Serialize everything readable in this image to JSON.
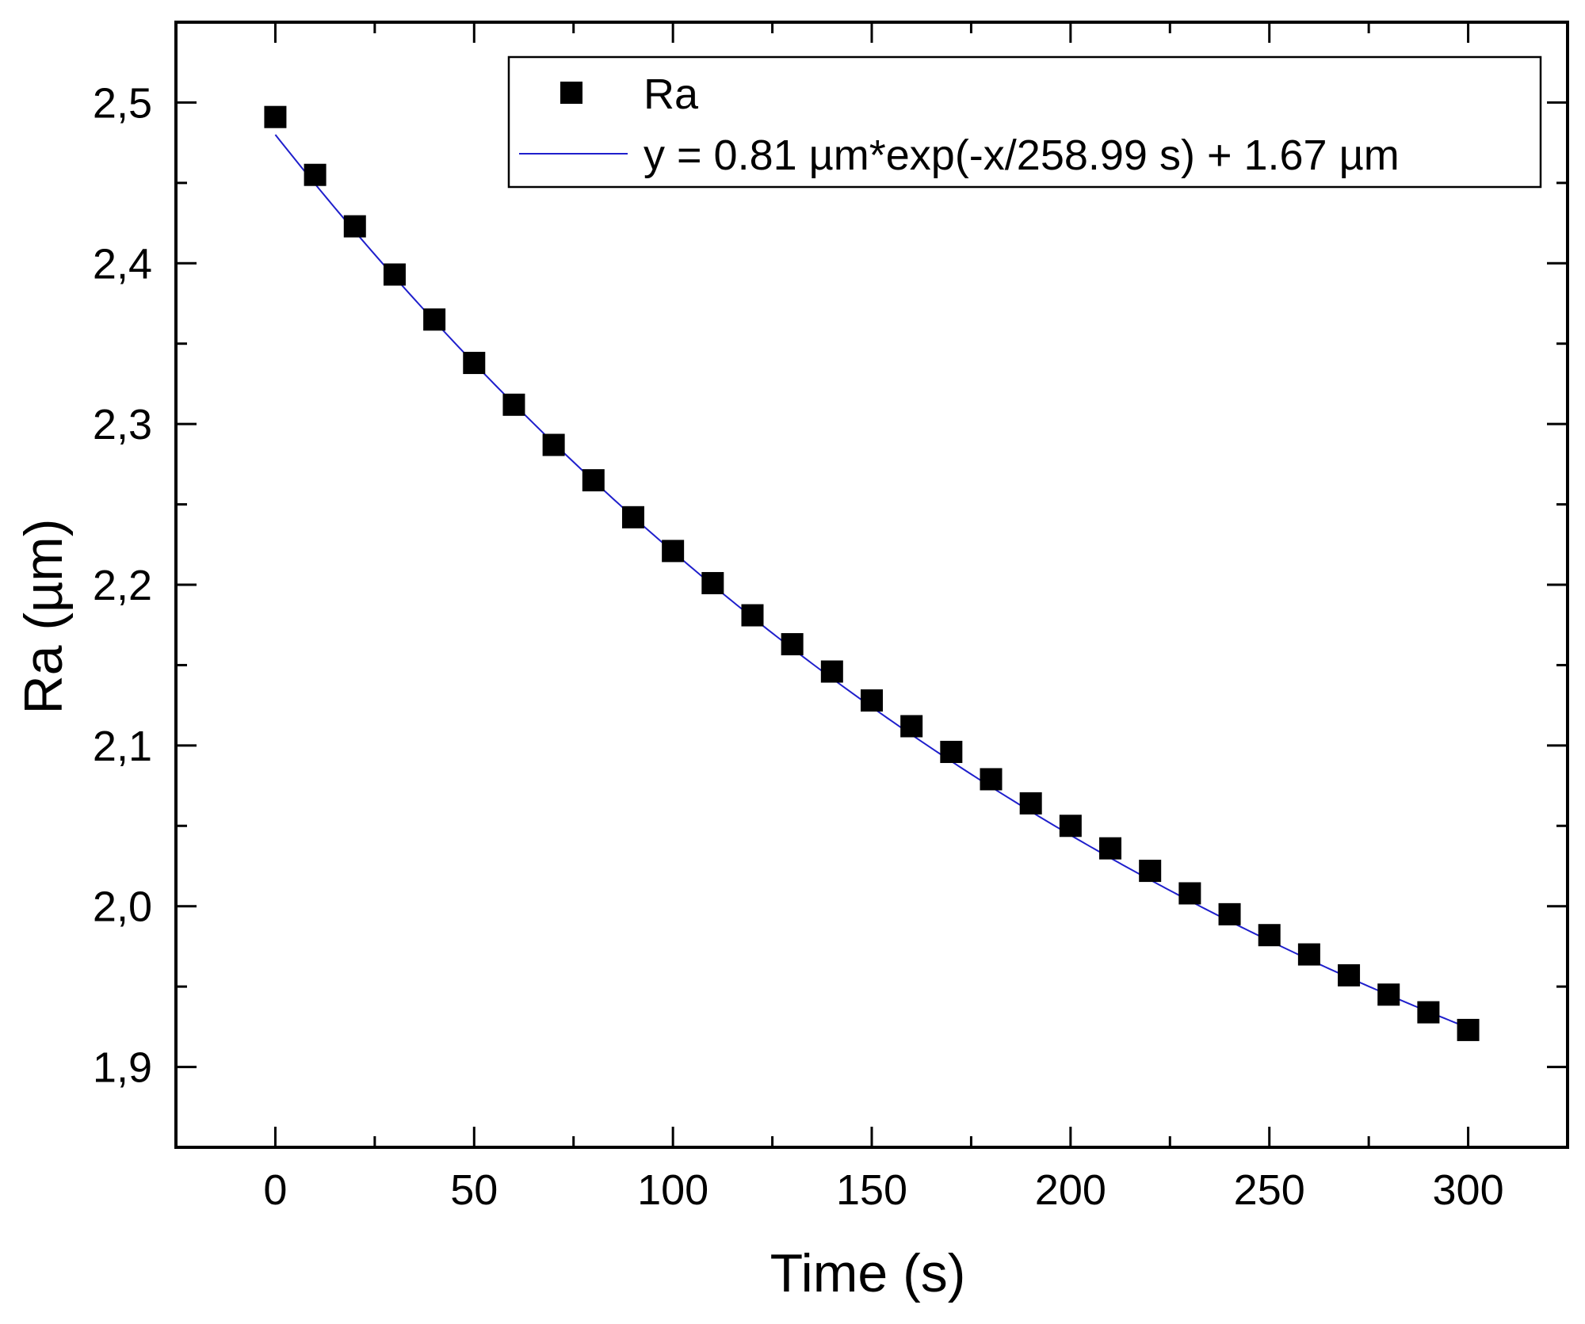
{
  "chart_data": {
    "type": "scatter",
    "title": "",
    "xlabel": "Time (s)",
    "ylabel": "Ra (µm)",
    "xlim": [
      -25,
      325
    ],
    "ylim": [
      1.85,
      2.55
    ],
    "xticks": [
      0,
      50,
      100,
      150,
      200,
      250,
      300
    ],
    "xtick_labels": [
      "0",
      "50",
      "100",
      "150",
      "200",
      "250",
      "300"
    ],
    "yticks": [
      1.9,
      2.0,
      2.1,
      2.2,
      2.3,
      2.4,
      2.5
    ],
    "ytick_labels": [
      "1,9",
      "2,0",
      "2,1",
      "2,2",
      "2,3",
      "2,4",
      "2,5"
    ],
    "grid": false,
    "legend_position": "top-right",
    "series": [
      {
        "name": "Ra",
        "kind": "scatter",
        "marker": "square",
        "color": "#000000",
        "x": [
          0,
          10,
          20,
          30,
          40,
          50,
          60,
          70,
          80,
          90,
          100,
          110,
          120,
          130,
          140,
          150,
          160,
          170,
          180,
          190,
          200,
          210,
          220,
          230,
          240,
          250,
          260,
          270,
          280,
          290,
          300
        ],
        "y": [
          2.491,
          2.455,
          2.423,
          2.393,
          2.365,
          2.338,
          2.312,
          2.287,
          2.265,
          2.242,
          2.221,
          2.201,
          2.181,
          2.163,
          2.146,
          2.128,
          2.112,
          2.096,
          2.079,
          2.064,
          2.05,
          2.036,
          2.022,
          2.008,
          1.995,
          1.982,
          1.97,
          1.957,
          1.945,
          1.934,
          1.923
        ]
      },
      {
        "name": "y = 0.81 µm*exp(-x/258.99 s) + 1.67 µm",
        "kind": "line",
        "color": "#1f1fcc",
        "function": {
          "A": 0.81,
          "tau": 258.99,
          "y0": 1.67
        },
        "x_range": [
          0,
          300
        ]
      }
    ]
  }
}
